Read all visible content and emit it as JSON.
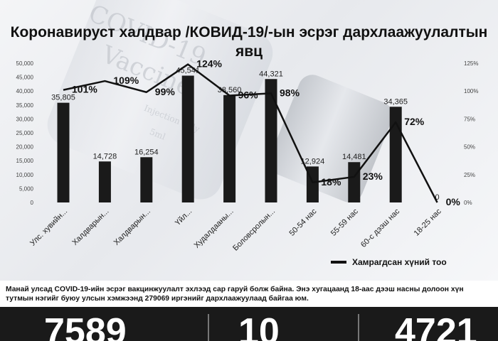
{
  "chart_data": {
    "type": "bar",
    "title": "Коронавируст халдвар /КОВИД-19/-ын эсрэг дархлаажуулалтын явц",
    "categories": [
      "Улс. хувийн...",
      "Халдварын...",
      "Халдварын...",
      "Үйл...",
      "Худалдааны...",
      "Боловсролын...",
      "50-54 нас",
      "55-59 нас",
      "60-с дээш нас",
      "18-25 нас"
    ],
    "series": [
      {
        "name": "Хамрагдсан хүний тоо",
        "type": "bar",
        "values": [
          35805,
          14728,
          16254,
          45541,
          38560,
          44321,
          12924,
          14481,
          34365,
          0
        ],
        "labels": [
          "35,805",
          "14,728",
          "16,254",
          "45,541",
          "38,560",
          "44,321",
          "12,924",
          "14,481",
          "34,365",
          "0"
        ],
        "color": "#1a1a1a"
      },
      {
        "type": "line",
        "axis": "right",
        "values": [
          101,
          109,
          99,
          124,
          96,
          98,
          18,
          23,
          72,
          0
        ],
        "labels": [
          "101%",
          "109%",
          "99%",
          "124%",
          "96%",
          "98%",
          "18%",
          "23%",
          "72%",
          "0%"
        ],
        "color": "#111111"
      }
    ],
    "ylim": [
      0,
      50000
    ],
    "yticks": [
      "0",
      "5,000",
      "10,000",
      "15,000",
      "20,000",
      "25,000",
      "30,000",
      "35,000",
      "40,000",
      "45,000",
      "50,000"
    ],
    "y2lim": [
      0,
      125
    ],
    "y2ticks": [
      "0%",
      "25%",
      "50%",
      "75%",
      "100%",
      "125%"
    ],
    "grid": false,
    "legend": "bottom-right"
  },
  "background_text": {
    "w1": "COVID-19",
    "w2": "Vaccine",
    "w3": "Injection only",
    "w4": "5ml"
  },
  "footer": {
    "note": "Манай улсад COVID-19-ийн эсрэг вакцинжуулалт эхлээд сар гаруй болж байна. Энэ хугацаанд 18-аас дээш насны долоон хүн тутмын нэгийг буюу улсын хэмжээнд 279069 иргэнийг дархлаажуулаад байгаа юм.",
    "stats": [
      "7589",
      "10",
      "4721"
    ]
  },
  "colors": {
    "bar": "#1a1a1a",
    "line": "#111111",
    "stats_bg": "#1a1a1a"
  }
}
